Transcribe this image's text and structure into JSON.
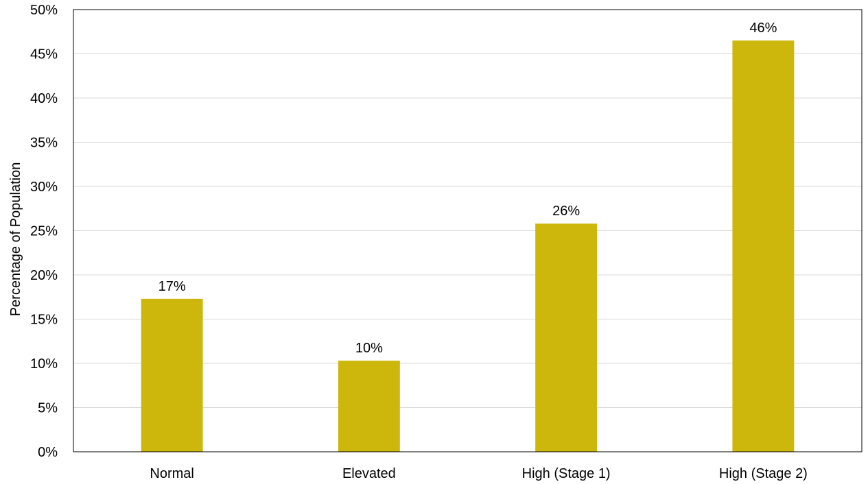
{
  "chart_data": {
    "type": "bar",
    "title": "",
    "xlabel": "",
    "ylabel": "Percentage of Population",
    "ylim": [
      0,
      50
    ],
    "ytick_step": 5,
    "ytick_suffix": "%",
    "grid": true,
    "legend": "none",
    "categories": [
      "Normal",
      "Elevated",
      "High (Stage 1)",
      "High (Stage 2)"
    ],
    "values": [
      17.3,
      10.3,
      25.8,
      46.5
    ],
    "data_labels": [
      "17%",
      "10%",
      "26%",
      "46%"
    ],
    "colors": {
      "bar": "#CDB70D",
      "grid": "#D9D9D9",
      "axis": "#000000"
    }
  }
}
